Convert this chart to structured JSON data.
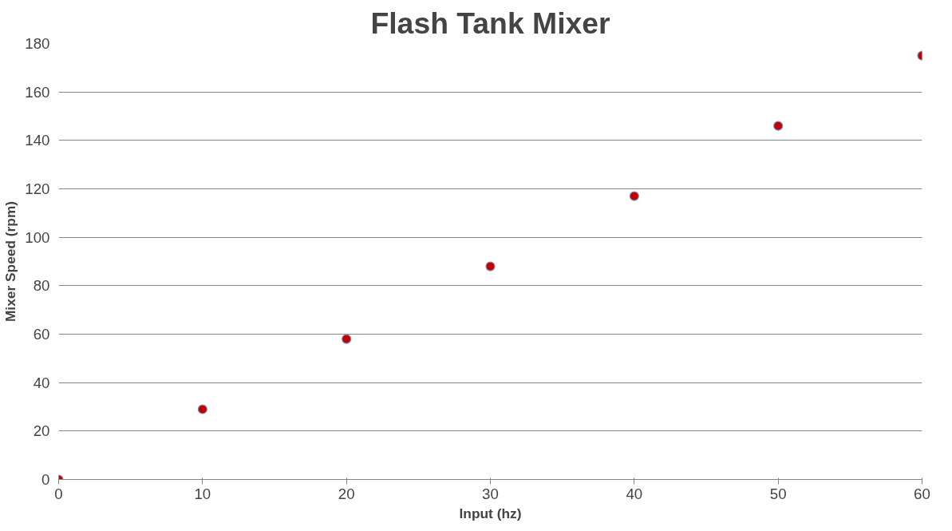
{
  "chart_data": {
    "type": "scatter",
    "title": "Flash Tank Mixer",
    "xlabel": "Input (hz)",
    "ylabel": "Mixer Speed (rpm)",
    "x": [
      0,
      10,
      20,
      30,
      40,
      50,
      60
    ],
    "series": [
      {
        "color": "#c00000",
        "values": [
          0,
          29,
          58,
          88,
          117,
          146,
          175
        ]
      }
    ],
    "xlim": [
      0,
      60
    ],
    "xticks": [
      0,
      10,
      20,
      30,
      40,
      50,
      60
    ],
    "ylim": [
      0,
      180
    ],
    "yticks": [
      0,
      20,
      40,
      60,
      80,
      100,
      120,
      140,
      160,
      180
    ],
    "grid": "y",
    "marker": "circle"
  }
}
